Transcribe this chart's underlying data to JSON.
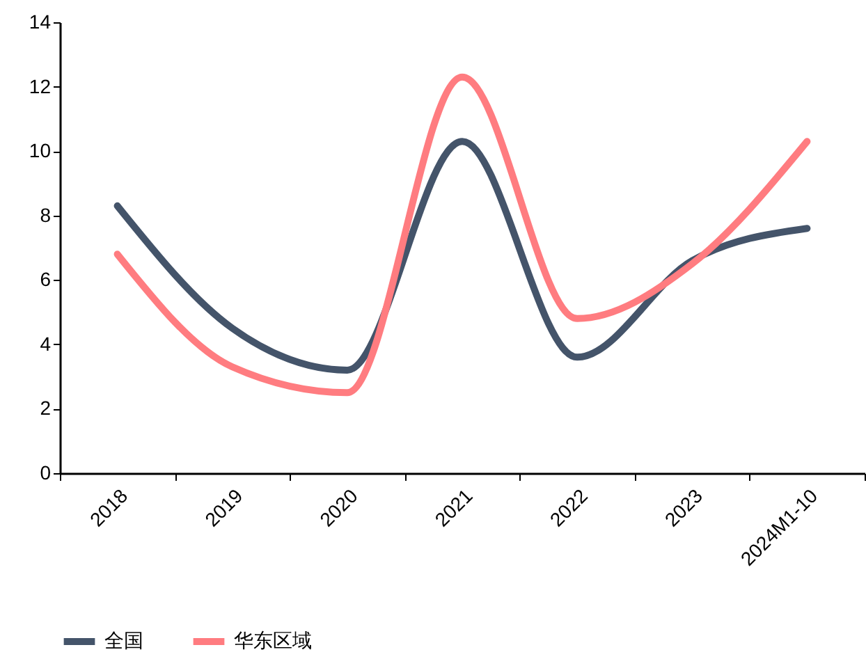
{
  "chart_data": {
    "type": "line",
    "categories": [
      "2018",
      "2019",
      "2020",
      "2021",
      "2022",
      "2023",
      "2024M1-10"
    ],
    "series": [
      {
        "name": "全国",
        "color": "#44546a",
        "values": [
          8.3,
          4.5,
          3.2,
          10.3,
          3.6,
          6.6,
          7.6
        ]
      },
      {
        "name": "华东区域",
        "color": "#ff7c80",
        "values": [
          6.8,
          3.3,
          2.5,
          12.3,
          4.8,
          6.5,
          10.3
        ]
      }
    ],
    "ylim": [
      0,
      14
    ],
    "yticks": [
      0,
      2,
      4,
      6,
      8,
      10,
      12,
      14
    ],
    "grid": false,
    "legend": "bottom",
    "marker": "none",
    "line_style": "solid"
  }
}
